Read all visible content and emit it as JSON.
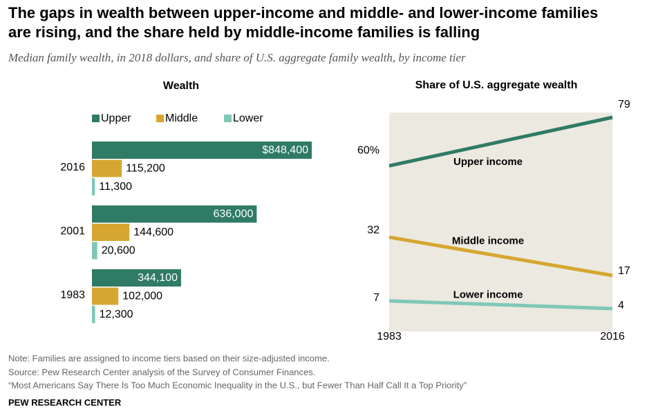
{
  "title_lines": [
    "The gaps in wealth between upper-income and middle- and lower-income families",
    "are rising, and the share held by middle-income families is falling"
  ],
  "subtitle": "Median family wealth, in 2018 dollars, and share of U.S. aggregate family wealth, by income tier",
  "chart_data": [
    {
      "type": "hbar",
      "title": "Wealth",
      "categories": [
        "2016",
        "2001",
        "1983"
      ],
      "series": [
        {
          "name": "Upper",
          "color": "#2f7b65",
          "values": [
            848400,
            636000,
            344100
          ],
          "value_labels": [
            "$848,400",
            "636,000",
            "344,100"
          ]
        },
        {
          "name": "Middle",
          "color": "#d6a630",
          "values": [
            115200,
            144600,
            102000
          ],
          "value_labels": [
            "115,200",
            "144,600",
            "102,000"
          ]
        },
        {
          "name": "Lower",
          "color": "#7fc8b8",
          "values": [
            11300,
            20600,
            12300
          ],
          "value_labels": [
            "11,300",
            "20,600",
            "12,300"
          ]
        }
      ]
    },
    {
      "type": "line",
      "title": "Share of U.S. aggregate wealth",
      "x": [
        1983,
        2016
      ],
      "xticks": [
        1983,
        2016
      ],
      "series": [
        {
          "name": "Upper income",
          "color": "#2f7b65",
          "values": [
            60,
            79
          ],
          "value_labels": [
            "60%",
            "79"
          ]
        },
        {
          "name": "Middle income",
          "color": "#d6a630",
          "values": [
            32,
            17
          ],
          "value_labels": [
            "32",
            "17"
          ]
        },
        {
          "name": "Lower income",
          "color": "#7fc8b8",
          "values": [
            7,
            4
          ],
          "value_labels": [
            "7",
            "4"
          ]
        }
      ]
    }
  ],
  "note": "Note: Families are assigned to income tiers based on their size-adjusted income.",
  "source": "Source: Pew Research Center analysis of the Survey of Consumer Finances.",
  "report": "“Most Americans Say There Is Too Much Economic Inequality in the U.S., but Fewer Than Half Call It a Top Priority”",
  "brand": "PEW RESEARCH CENTER"
}
